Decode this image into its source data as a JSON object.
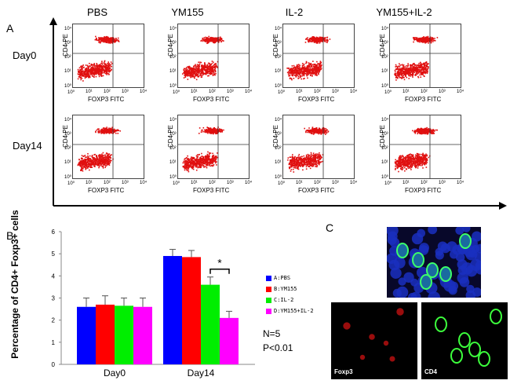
{
  "panelA": {
    "letter": "A",
    "conditions": [
      "PBS",
      "YM155",
      "IL-2",
      "YM155+IL-2"
    ],
    "rows": [
      "Day0",
      "Day14"
    ],
    "ylabel": "CD4 PE",
    "xlabel": "FOXP3 FITC",
    "tick_labels": [
      "10⁰",
      "10¹",
      "10²",
      "10³",
      "10⁴"
    ]
  },
  "panelB": {
    "letter": "B",
    "note_n": "N=5",
    "note_p": "P<0.01",
    "significance": "*"
  },
  "panelC": {
    "letter": "C",
    "label_foxp3": "Foxp3",
    "label_cd4": "CD4"
  },
  "chart_data": {
    "type": "bar",
    "categories": [
      "Day0",
      "Day14"
    ],
    "ylabel": "Percentage of CD4+ Foxp3+ cells",
    "ylim": [
      0,
      6
    ],
    "yticks": [
      "0",
      "1",
      "2",
      "3",
      "4",
      "5",
      "6"
    ],
    "series": [
      {
        "name": "A:PBS",
        "color": "#0000ff",
        "values": [
          2.6,
          4.9
        ],
        "errors": [
          0.4,
          0.3
        ]
      },
      {
        "name": "B:YM155",
        "color": "#ff0000",
        "values": [
          2.7,
          4.85
        ],
        "errors": [
          0.4,
          0.3
        ]
      },
      {
        "name": "C:IL-2",
        "color": "#00ee00",
        "values": [
          2.65,
          3.6
        ],
        "errors": [
          0.35,
          0.35
        ]
      },
      {
        "name": "D:YM155+IL-2",
        "color": "#ff00ff",
        "values": [
          2.6,
          2.1
        ],
        "errors": [
          0.4,
          0.3
        ]
      }
    ]
  }
}
